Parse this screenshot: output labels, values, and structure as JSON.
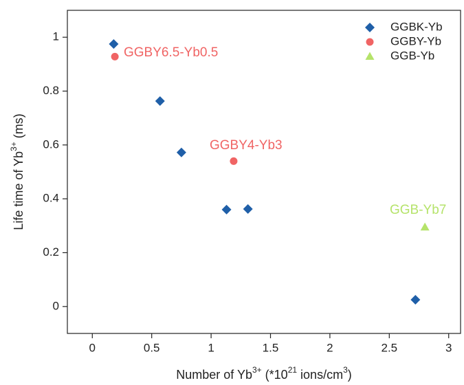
{
  "chart_data": {
    "type": "scatter",
    "x_label": [
      "Number of Yb",
      "3+",
      " (*10",
      "21",
      " ions/cm",
      "3",
      ")"
    ],
    "y_label": [
      "Life time of Yb",
      "3+",
      " (ms)"
    ],
    "xlim": [
      -0.21,
      3.1
    ],
    "ylim": [
      -0.1,
      1.1
    ],
    "xticks": [
      0,
      0.5,
      1,
      1.5,
      2,
      2.5,
      3
    ],
    "yticks": [
      0,
      0.2,
      0.4,
      0.6,
      0.8,
      1
    ],
    "legend": "upper right",
    "series": [
      {
        "name": "GGBK-Yb",
        "color": "#1f5fa8",
        "marker": "diamond",
        "x": [
          0.18,
          0.57,
          0.75,
          1.13,
          1.31,
          2.72
        ],
        "values": [
          0.975,
          0.763,
          0.572,
          0.36,
          0.362,
          0.025
        ]
      },
      {
        "name": "GGBY-Yb",
        "color": "#f06464",
        "marker": "circle",
        "x": [
          0.19,
          1.19
        ],
        "values": [
          0.928,
          0.54
        ]
      },
      {
        "name": "GGB-Yb",
        "color": "#b5e36a",
        "marker": "triangle",
        "x": [
          2.8
        ],
        "values": [
          0.295
        ]
      }
    ],
    "annotations": [
      {
        "text": "GGBY6.5-Yb0.5",
        "color": "#f06464"
      },
      {
        "text": "GGBY4-Yb3",
        "color": "#f06464"
      },
      {
        "text": "GGB-Yb7",
        "color": "#b5e36a"
      }
    ]
  }
}
